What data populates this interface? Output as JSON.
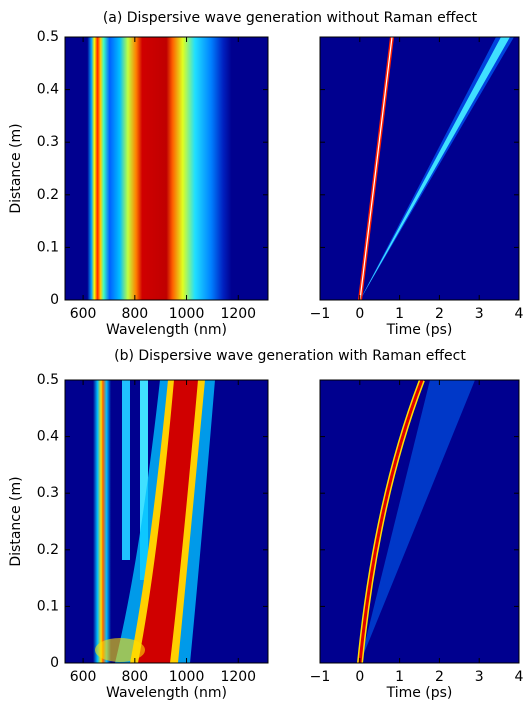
{
  "chart_data": [
    {
      "type": "heatmap",
      "title": "(a) Dispersive wave generation without Raman effect",
      "x_label": "Wavelength (nm)",
      "y_label": "Distance (m)",
      "xlim": [
        530,
        1315
      ],
      "xticks": [
        600,
        800,
        1000,
        1200
      ],
      "ylim": [
        0,
        0.5
      ],
      "yticks": [
        0,
        0.1,
        0.2,
        0.3,
        0.4,
        0.5
      ]
    },
    {
      "type": "heatmap",
      "x_label": "Time (ps)",
      "xlim": [
        -1,
        4
      ],
      "xticks": [
        {
          "value": -1,
          "label": "−1"
        },
        0,
        1,
        2,
        3,
        4
      ],
      "ylim": [
        0,
        0.5
      ],
      "yticks": [
        0,
        0.1,
        0.2,
        0.3,
        0.4,
        0.5
      ]
    },
    {
      "type": "heatmap",
      "title": "(b) Dispersive wave generation with Raman effect",
      "x_label": "Wavelength (nm)",
      "y_label": "Distance (m)",
      "xlim": [
        530,
        1315
      ],
      "xticks": [
        600,
        800,
        1000,
        1200
      ],
      "ylim": [
        0,
        0.5
      ],
      "yticks": [
        0,
        0.1,
        0.2,
        0.3,
        0.4,
        0.5
      ]
    },
    {
      "type": "heatmap",
      "x_label": "Time (ps)",
      "xlim": [
        -1,
        4
      ],
      "xticks": [
        {
          "value": -1,
          "label": "−1"
        },
        0,
        1,
        2,
        3,
        4
      ],
      "ylim": [
        0,
        0.5
      ],
      "yticks": [
        0,
        0.1,
        0.2,
        0.3,
        0.4,
        0.5
      ]
    }
  ]
}
